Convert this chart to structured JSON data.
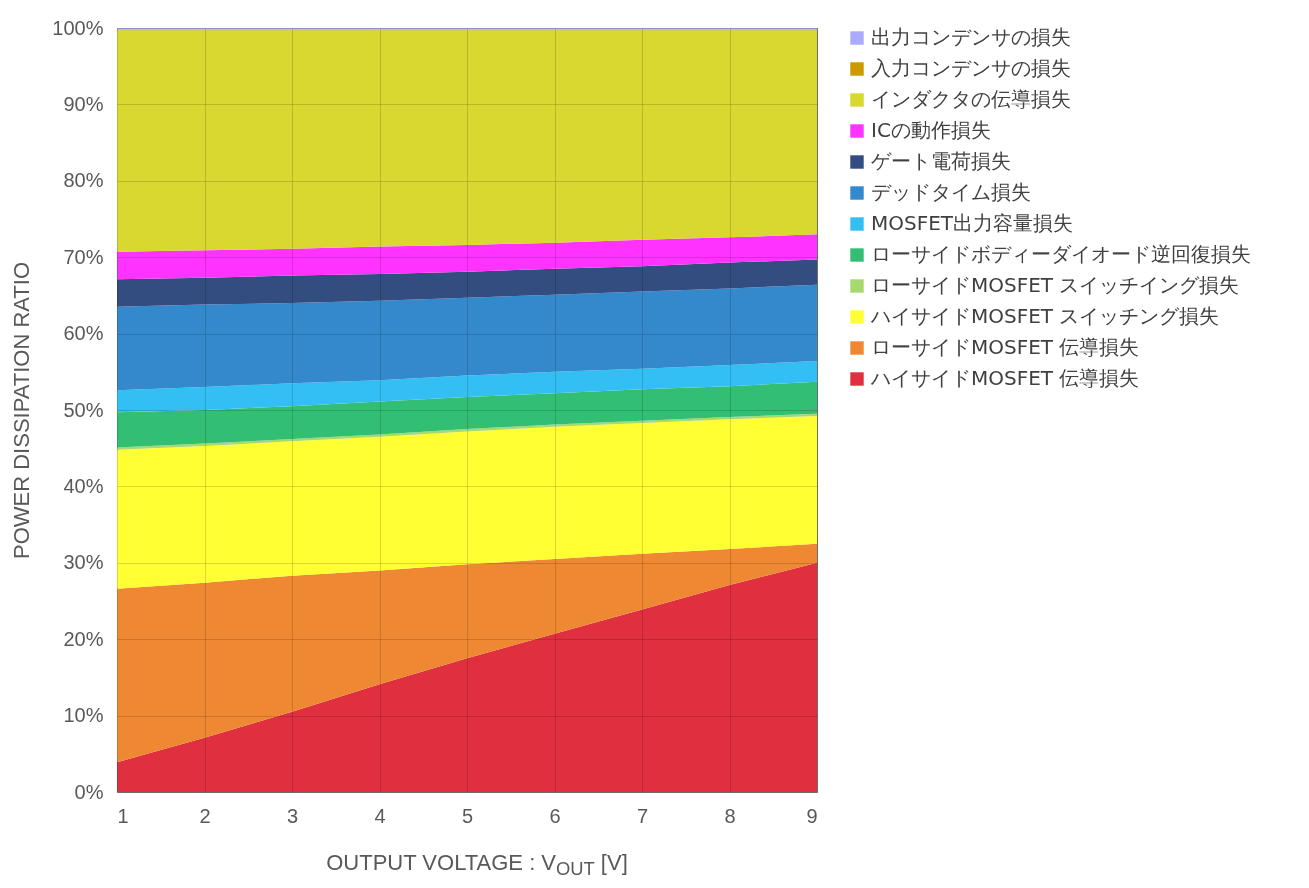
{
  "chart_data": {
    "type": "area",
    "stacked": true,
    "grid": true,
    "legend": "right",
    "xlabel": "OUTPUT VOLTAGE : V$_{OUT}$ [V]",
    "ylabel": "POWER DISSIPATION RATIO",
    "x": [
      1,
      2,
      3,
      4,
      5,
      6,
      7,
      8,
      9
    ],
    "xlim": [
      1,
      9
    ],
    "xticks": [
      1,
      2,
      3,
      4,
      5,
      6,
      7,
      8,
      9
    ],
    "ylim": [
      0,
      100
    ],
    "yticks": [
      {
        "value": 0,
        "label": "0%"
      },
      {
        "value": 10,
        "label": "10%"
      },
      {
        "value": 20,
        "label": "20%"
      },
      {
        "value": 30,
        "label": "30%"
      },
      {
        "value": 40,
        "label": "40%"
      },
      {
        "value": 50,
        "label": "50%"
      },
      {
        "value": 60,
        "label": "60%"
      },
      {
        "value": 70,
        "label": "70%"
      },
      {
        "value": 80,
        "label": "80%"
      },
      {
        "value": 90,
        "label": "90%"
      },
      {
        "value": 100,
        "label": "100%"
      }
    ],
    "series": [
      {
        "name": "ハイサイドMOSFET 伝導損失",
        "color": "#e0303f",
        "values": [
          3.9,
          7.1,
          10.5,
          14.1,
          17.5,
          20.7,
          23.9,
          27.1,
          30.0
        ]
      },
      {
        "name": "ローサイドMOSFET 伝導損失",
        "color": "#ef8833",
        "values": [
          22.7,
          20.3,
          17.8,
          14.9,
          12.3,
          9.8,
          7.3,
          4.7,
          2.5
        ]
      },
      {
        "name": "ハイサイドMOSFET スイッチング損失",
        "color": "#ffff33",
        "values": [
          18.2,
          17.9,
          17.6,
          17.5,
          17.4,
          17.3,
          17.1,
          17.0,
          16.7
        ]
      },
      {
        "name": "ローサイドMOSFET スイッチイング損失",
        "color": "#a8d870",
        "values": [
          0.3,
          0.3,
          0.3,
          0.3,
          0.3,
          0.3,
          0.3,
          0.3,
          0.3
        ]
      },
      {
        "name": "ローサイドボディーダイオード逆回復損失",
        "color": "#33bf73",
        "values": [
          4.6,
          4.4,
          4.3,
          4.3,
          4.2,
          4.1,
          4.1,
          4.0,
          4.2
        ]
      },
      {
        "name": "MOSFET出力容量損失",
        "color": "#33bff3",
        "values": [
          2.9,
          3.0,
          3.0,
          2.8,
          2.8,
          2.8,
          2.7,
          2.8,
          2.7
        ]
      },
      {
        "name": "デッドタイム損失",
        "color": "#3389cc",
        "values": [
          10.9,
          10.8,
          10.5,
          10.4,
          10.2,
          10.1,
          10.1,
          10.0,
          10.0
        ]
      },
      {
        "name": "ゲート電荷損失",
        "color": "#334d80",
        "values": [
          3.6,
          3.5,
          3.6,
          3.5,
          3.4,
          3.4,
          3.3,
          3.4,
          3.3
        ]
      },
      {
        "name": "ICの動作損失",
        "color": "#ff33ff",
        "values": [
          3.6,
          3.6,
          3.5,
          3.6,
          3.5,
          3.4,
          3.5,
          3.3,
          3.3
        ]
      },
      {
        "name": "インダクタの伝導損失",
        "color": "#d8d830",
        "values": [
          29.0,
          28.8,
          28.6,
          28.3,
          28.1,
          27.8,
          27.4,
          27.1,
          26.7
        ]
      },
      {
        "name": "入力コンデンサの損失",
        "color": "#cc9900",
        "values": [
          0.1,
          0.1,
          0.1,
          0.1,
          0.1,
          0.1,
          0.1,
          0.1,
          0.1
        ]
      },
      {
        "name": "出力コンデンサの損失",
        "color": "#aaaaff",
        "values": [
          0.2,
          0.2,
          0.2,
          0.2,
          0.2,
          0.2,
          0.2,
          0.2,
          0.2
        ]
      }
    ]
  }
}
